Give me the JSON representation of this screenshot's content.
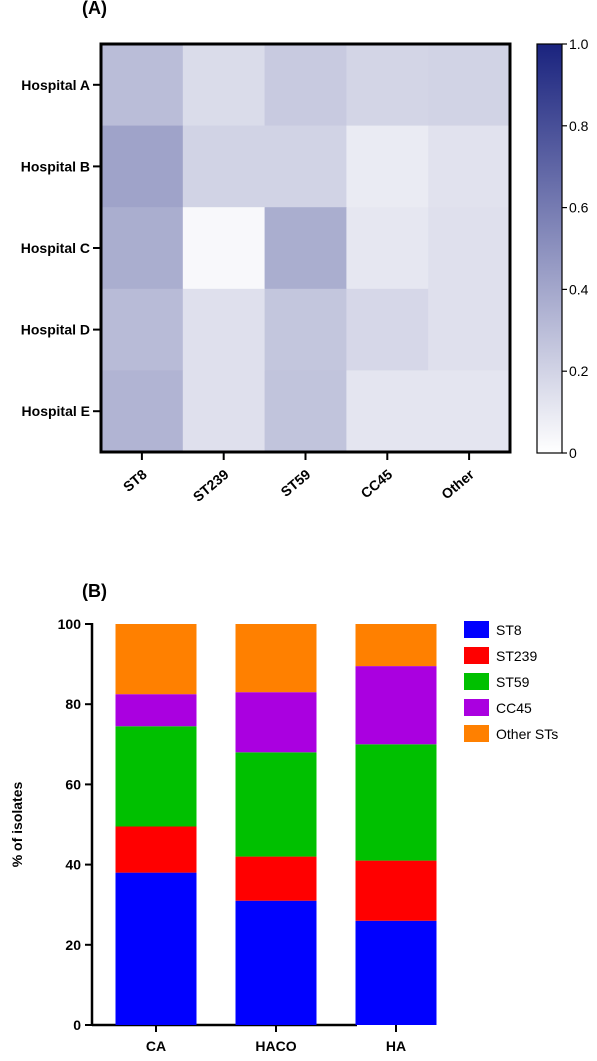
{
  "panels": {
    "a_label": "(A)",
    "b_label": "(B)"
  },
  "chart_data": [
    {
      "type": "heatmap",
      "rows": [
        "Hospital A",
        "Hospital B",
        "Hospital C",
        "Hospital D",
        "Hospital E"
      ],
      "columns": [
        "ST8",
        "ST239",
        "ST59",
        "CC45",
        "Other"
      ],
      "values": [
        [
          0.3,
          0.16,
          0.24,
          0.19,
          0.2
        ],
        [
          0.42,
          0.2,
          0.2,
          0.09,
          0.13
        ],
        [
          0.37,
          0.03,
          0.37,
          0.11,
          0.14
        ],
        [
          0.31,
          0.14,
          0.26,
          0.18,
          0.14
        ],
        [
          0.34,
          0.14,
          0.27,
          0.12,
          0.12
        ]
      ],
      "colorbar": {
        "range": [
          0,
          1.0
        ],
        "ticks": [
          "0",
          "0.2",
          "0.4",
          "0.6",
          "0.8",
          "1.0"
        ],
        "tick_values": [
          0,
          0.2,
          0.4,
          0.6,
          0.8,
          1.0
        ],
        "low_color": "#ffffff",
        "high_color": "#1a237e"
      },
      "grid": false
    },
    {
      "type": "bar",
      "stacked": true,
      "categories": [
        "CA",
        "HACO",
        "HA"
      ],
      "series": [
        {
          "name": "ST8",
          "values": [
            38,
            31,
            26
          ],
          "color": "#0000ff"
        },
        {
          "name": "ST239",
          "values": [
            11.5,
            11,
            15
          ],
          "color": "#ff0000"
        },
        {
          "name": "ST59",
          "values": [
            25,
            26,
            29
          ],
          "color": "#00c000"
        },
        {
          "name": "CC45",
          "values": [
            8,
            15,
            19.5
          ],
          "color": "#aa00e0"
        },
        {
          "name": "Other STs",
          "values": [
            17.5,
            17,
            10.5
          ],
          "color": "#ff8000"
        }
      ],
      "ylabel": "% of isolates",
      "xlabel": "",
      "ylim": [
        0,
        100
      ],
      "yticks": [
        "0",
        "20",
        "40",
        "60",
        "80",
        "100"
      ],
      "ytick_values": [
        0,
        20,
        40,
        60,
        80,
        100
      ],
      "legend_position": "right",
      "grid": false
    }
  ]
}
